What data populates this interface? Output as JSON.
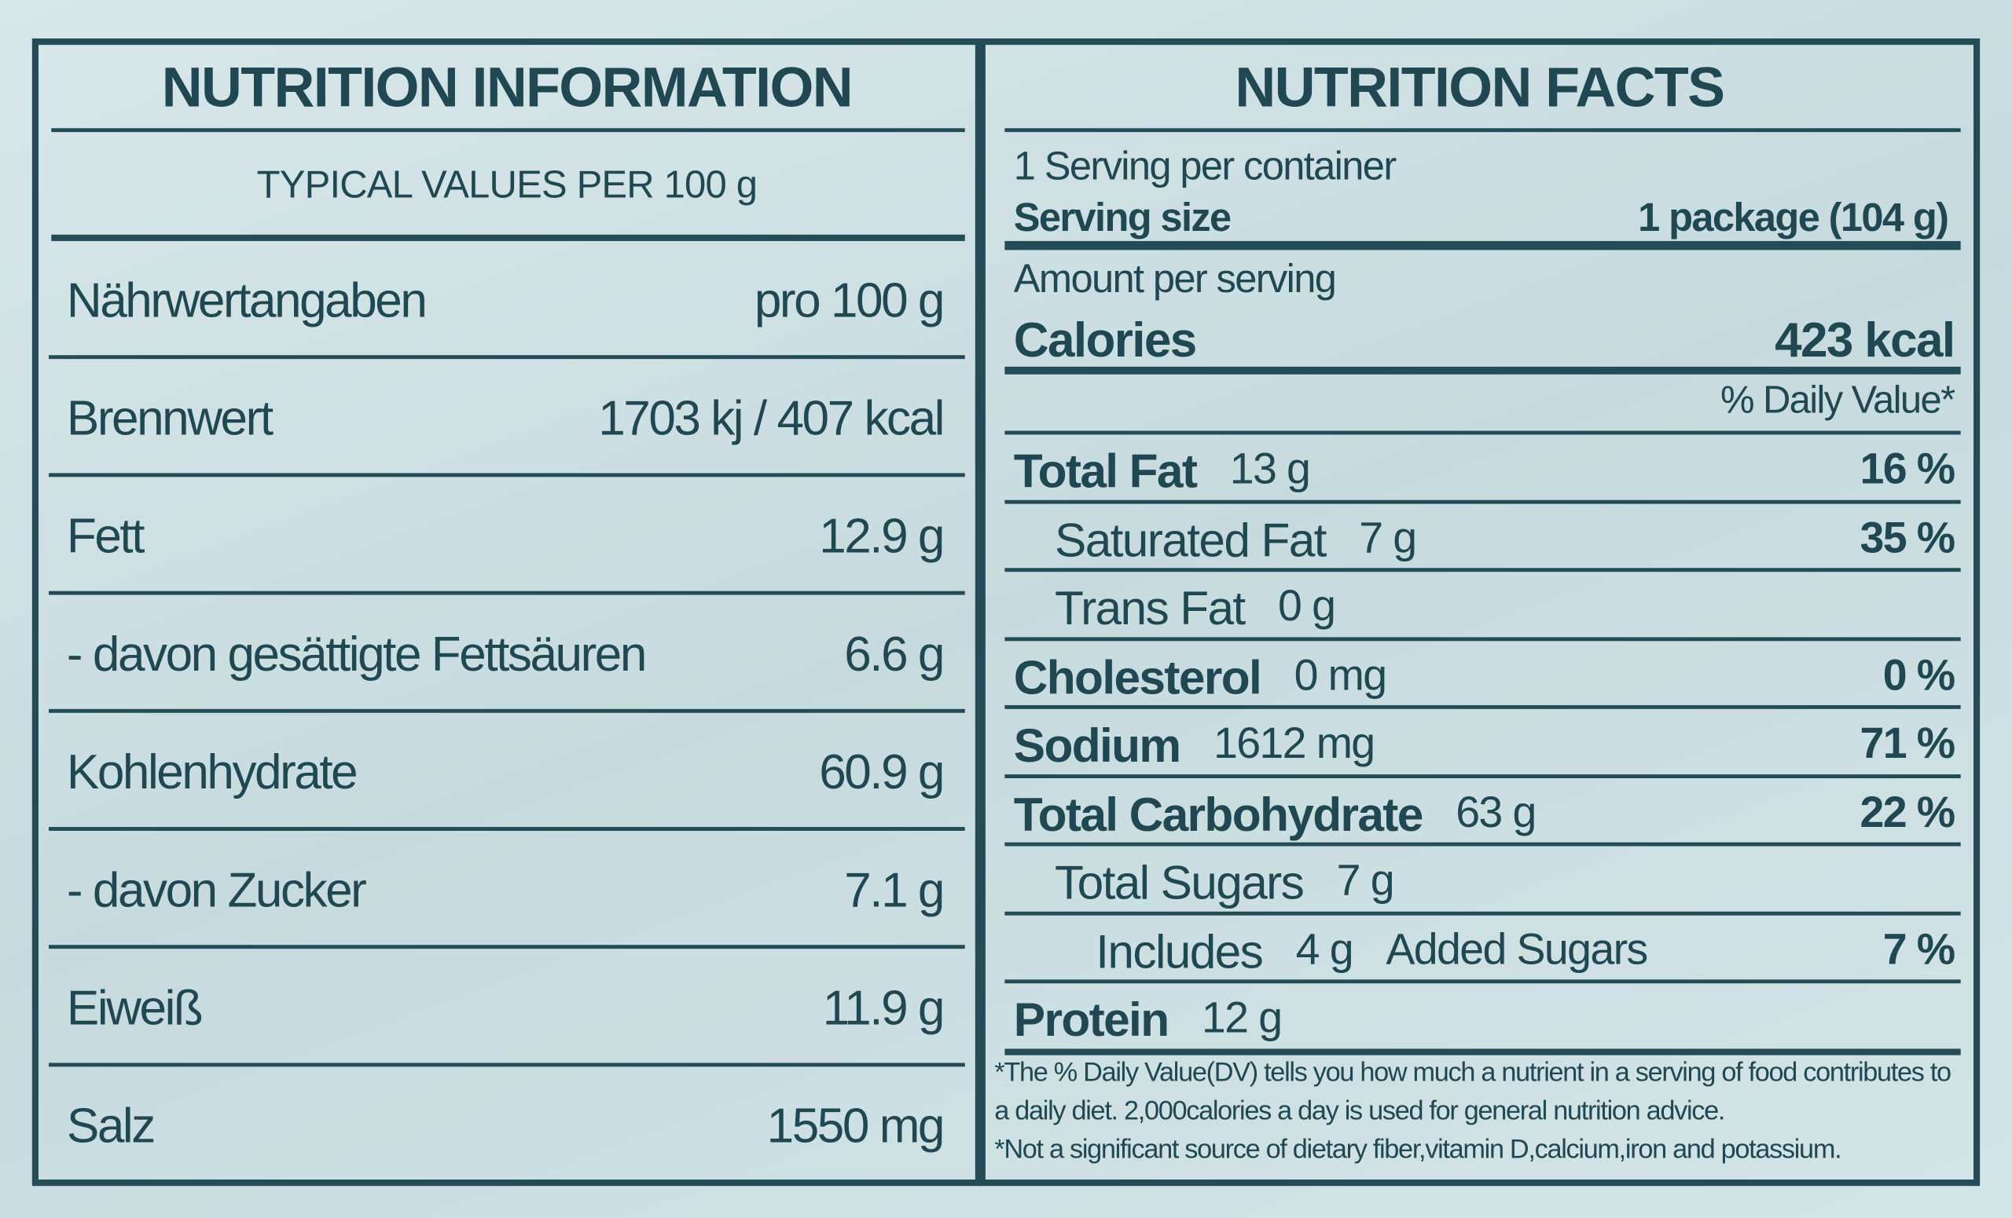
{
  "left": {
    "title": "NUTRITION INFORMATION",
    "subtitle": "TYPICAL VALUES PER 100 g",
    "rows": [
      [
        "Nährwertangaben",
        "pro 100 g"
      ],
      [
        "Brennwert",
        "1703 kj / 407 kcal"
      ],
      [
        "Fett",
        "12.9 g"
      ],
      [
        "- davon gesättigte Fettsäuren",
        "6.6 g"
      ],
      [
        "Kohlenhydrate",
        "60.9 g"
      ],
      [
        "- davon Zucker",
        "7.1 g"
      ],
      [
        "Eiweiß",
        "11.9 g"
      ],
      [
        "Salz",
        "1550 mg"
      ]
    ]
  },
  "right": {
    "title": "NUTRITION FACTS",
    "servings": "1 Serving per container",
    "serving_size_label": "Serving size",
    "serving_size": "1 package (104 g)",
    "amount_per_serving": "Amount per serving",
    "calories_label": "Calories",
    "calories": "423 kcal",
    "dv_header": "% Daily Value*",
    "rows": [
      {
        "name": "Total Fat",
        "amount": "13 g",
        "dv": "16 %"
      },
      {
        "name": "Saturated Fat",
        "amount": "7 g",
        "dv": "35 %"
      },
      {
        "name": "Trans Fat",
        "amount": "0 g"
      },
      {
        "name": "Cholesterol",
        "amount": "0 mg",
        "dv": "0 %"
      },
      {
        "name": "Sodium",
        "amount": "1612 mg",
        "dv": "71 %"
      },
      {
        "name": "Total Carbohydrate",
        "amount": "63 g",
        "dv": "22 %"
      },
      {
        "name": "Total Sugars",
        "amount": "7 g"
      },
      {
        "name": "Includes",
        "amount": "4 g",
        "suffix": "Added Sugars",
        "dv": "7 %"
      },
      {
        "name": "Protein",
        "amount": "12 g"
      }
    ],
    "footnotes": [
      "*The % Daily Value(DV) tells you how much a nutrient in a serving of food contributes to a daily diet. 2,000calories a day is used for general nutrition advice.",
      "*Not a significant source of dietary fiber,vitamin D,calcium,iron and potassium."
    ]
  }
}
